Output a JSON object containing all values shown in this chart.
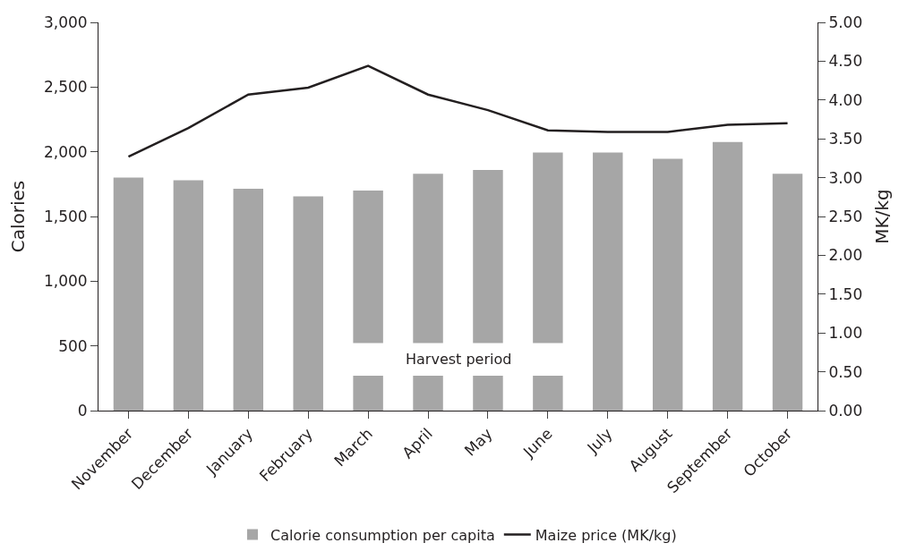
{
  "chart_data": {
    "type": "bar",
    "ylabel": "Calories",
    "y2label": "MK/kg",
    "categories": [
      "November",
      "December",
      "January",
      "February",
      "March",
      "April",
      "May",
      "June",
      "July",
      "August",
      "September",
      "October"
    ],
    "series": [
      {
        "name": "Calorie consumption per capita",
        "color": "#a6a6a6",
        "values": [
          1800,
          1780,
          1715,
          1655,
          1700,
          1830,
          1860,
          1995,
          1995,
          1945,
          2075,
          1830
        ]
      },
      {
        "name": "Maize price (MK/kg)",
        "type": "line",
        "axis": "y2",
        "color": "#231f20",
        "values": [
          3.27,
          3.64,
          4.07,
          4.16,
          4.44,
          4.07,
          3.87,
          3.61,
          3.59,
          3.59,
          3.68,
          3.7
        ]
      }
    ],
    "ylim": [
      0,
      3000
    ],
    "yticks": [
      {
        "value": 0,
        "label": "0"
      },
      {
        "value": 500,
        "label": "500"
      },
      {
        "value": 1000,
        "label": "1,000"
      },
      {
        "value": 1500,
        "label": "1,500"
      },
      {
        "value": 2000,
        "label": "2,000"
      },
      {
        "value": 2500,
        "label": "2,500"
      },
      {
        "value": 3000,
        "label": "3,000"
      }
    ],
    "y2lim": [
      0,
      5
    ],
    "y2ticks": [
      {
        "value": 0,
        "label": "0.00"
      },
      {
        "value": 0.5,
        "label": "0.50"
      },
      {
        "value": 1,
        "label": "1.00"
      },
      {
        "value": 1.5,
        "label": "1.50"
      },
      {
        "value": 2,
        "label": "2.00"
      },
      {
        "value": 2.5,
        "label": "2.50"
      },
      {
        "value": 3,
        "label": "3.00"
      },
      {
        "value": 3.5,
        "label": "3.50"
      },
      {
        "value": 4,
        "label": "4.00"
      },
      {
        "value": 4.5,
        "label": "4.50"
      },
      {
        "value": 5,
        "label": "5.00"
      }
    ],
    "bands": [
      {
        "axis": "x",
        "from": "March",
        "to": "June",
        "label": "Harvest period",
        "color": "#ffffff"
      }
    ],
    "legend": "bottom",
    "marker": "none",
    "line_style": "solid"
  }
}
